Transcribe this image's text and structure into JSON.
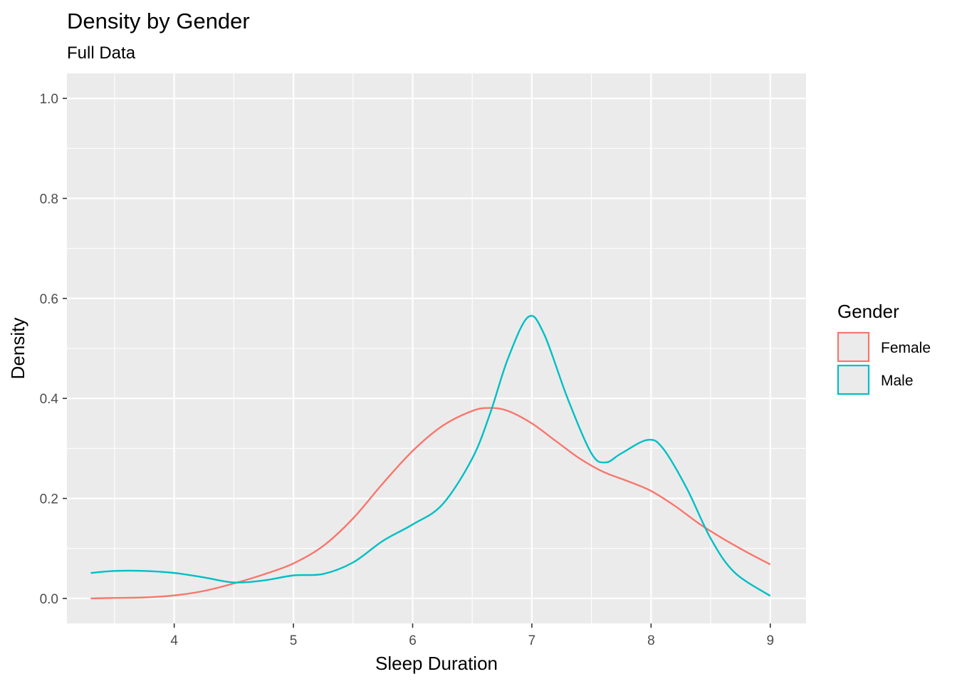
{
  "chart_data": {
    "type": "line",
    "title": "Density by Gender",
    "subtitle": "Full Data",
    "xlabel": "Sleep Duration",
    "ylabel": "Density",
    "xlim": [
      3.1,
      9.3
    ],
    "ylim": [
      -0.05,
      1.05
    ],
    "x_ticks": [
      4,
      5,
      6,
      7,
      8,
      9
    ],
    "y_ticks": [
      0.0,
      0.2,
      0.4,
      0.6,
      0.8,
      1.0
    ],
    "x_tick_labels": [
      "4",
      "5",
      "6",
      "7",
      "8",
      "9"
    ],
    "y_tick_labels": [
      "0.0",
      "0.2",
      "0.4",
      "0.6",
      "0.8",
      "1.0"
    ],
    "grid": true,
    "legend": {
      "title": "Gender",
      "position": "right"
    },
    "series": [
      {
        "name": "Female",
        "color": "#F8766D",
        "x": [
          3.3,
          3.5,
          3.75,
          4.0,
          4.25,
          4.5,
          4.75,
          5.0,
          5.25,
          5.5,
          5.75,
          6.0,
          6.25,
          6.5,
          6.65,
          6.8,
          7.0,
          7.2,
          7.4,
          7.6,
          7.8,
          8.0,
          8.2,
          8.4,
          8.6,
          8.8,
          9.0
        ],
        "y": [
          0.0,
          0.001,
          0.002,
          0.006,
          0.015,
          0.03,
          0.048,
          0.07,
          0.105,
          0.16,
          0.23,
          0.295,
          0.345,
          0.375,
          0.381,
          0.375,
          0.35,
          0.315,
          0.28,
          0.253,
          0.235,
          0.215,
          0.185,
          0.15,
          0.12,
          0.093,
          0.068
        ]
      },
      {
        "name": "Male",
        "color": "#00BFC4",
        "x": [
          3.3,
          3.5,
          3.75,
          4.0,
          4.25,
          4.5,
          4.75,
          5.0,
          5.25,
          5.5,
          5.75,
          6.0,
          6.25,
          6.5,
          6.65,
          6.8,
          6.97,
          7.1,
          7.3,
          7.5,
          7.62,
          7.75,
          7.97,
          8.1,
          8.3,
          8.5,
          8.7,
          9.0
        ],
        "y": [
          0.051,
          0.055,
          0.055,
          0.051,
          0.042,
          0.032,
          0.036,
          0.046,
          0.049,
          0.072,
          0.115,
          0.148,
          0.188,
          0.28,
          0.37,
          0.48,
          0.563,
          0.53,
          0.4,
          0.29,
          0.272,
          0.29,
          0.317,
          0.3,
          0.22,
          0.12,
          0.052,
          0.005
        ]
      }
    ]
  }
}
